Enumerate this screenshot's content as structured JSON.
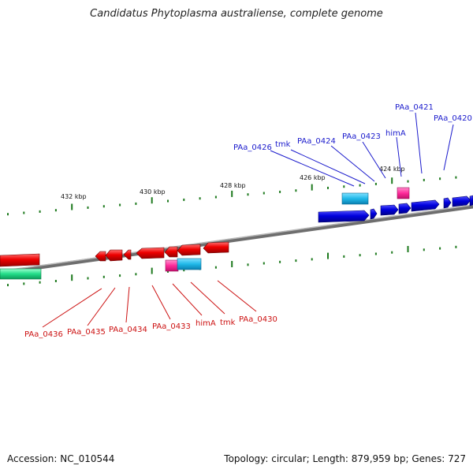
{
  "title": "Candidatus Phytoplasma australiense, complete genome",
  "footer": {
    "accession": "Accession: NC_010544",
    "stats": "Topology: circular; Length: 879,959 bp; Genes: 727"
  },
  "kbp_labels": [
    "432 kbp",
    "430 kbp",
    "428 kbp",
    "426 kbp",
    "424 kbp"
  ],
  "forward_labels": [
    "PAa_0426",
    "tmk",
    "PAa_0424",
    "PAa_0423",
    "himA",
    "PAa_0421",
    "PAa_0420"
  ],
  "reverse_labels": [
    "PAa_0436",
    "PAa_0435",
    "PAa_0434",
    "PAa_0433",
    "himA",
    "tmk",
    "PAa_0430"
  ],
  "colors": {
    "forward_gene": "#0000dd",
    "reverse_gene": "#ee0000",
    "forward_label": "#1a1acc",
    "reverse_label": "#cc1111",
    "cyan_feature": "#1fb8e8",
    "magenta_feature": "#ff2a9a",
    "green_feature": "#22dd88",
    "backbone": "#888888",
    "tick": "#1e7a1e"
  }
}
